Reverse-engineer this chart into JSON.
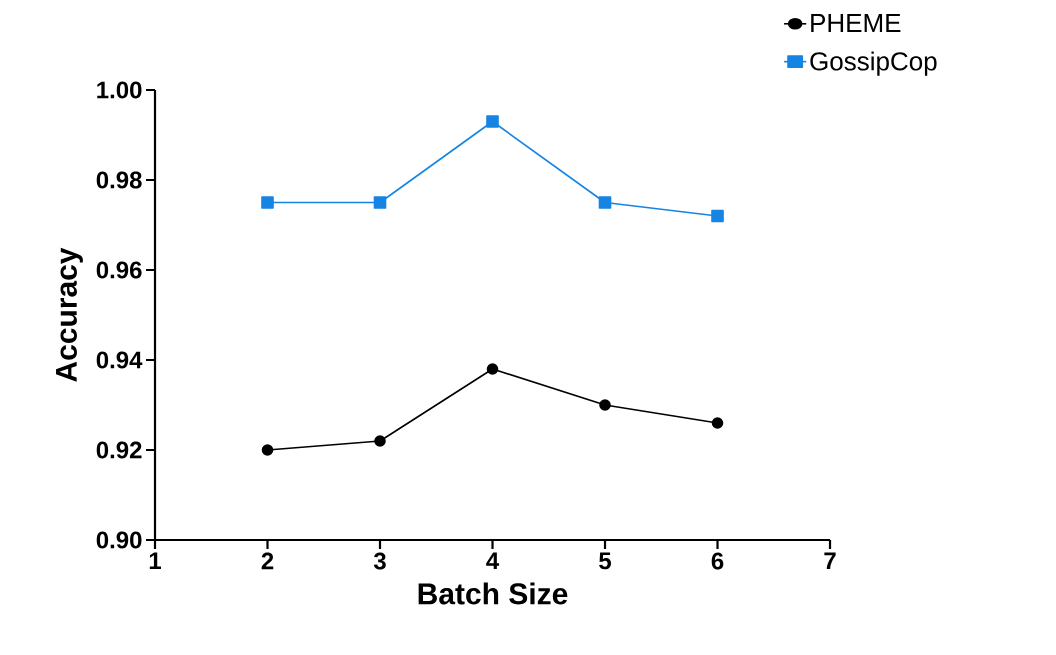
{
  "chart_data": {
    "type": "line",
    "xlabel": "Batch Size",
    "ylabel": "Accuracy",
    "x": [
      2,
      3,
      4,
      5,
      6
    ],
    "series": [
      {
        "name": "PHEME",
        "color": "#000000",
        "marker": "circle",
        "values": [
          0.92,
          0.922,
          0.938,
          0.93,
          0.926
        ]
      },
      {
        "name": "GossipCop",
        "color": "#1684e3",
        "marker": "square",
        "values": [
          0.975,
          0.975,
          0.993,
          0.975,
          0.972
        ]
      }
    ],
    "xlim": [
      1,
      7
    ],
    "xticks": [
      1,
      2,
      3,
      4,
      5,
      6,
      7
    ],
    "ylim": [
      0.9,
      1.0
    ],
    "yticks": [
      {
        "value": 0.9,
        "label": "0.90"
      },
      {
        "value": 0.92,
        "label": "0.92"
      },
      {
        "value": 0.94,
        "label": "0.94"
      },
      {
        "value": 0.96,
        "label": "0.96"
      },
      {
        "value": 0.98,
        "label": "0.98"
      },
      {
        "value": 1.0,
        "label": "1.00"
      }
    ],
    "grid": false,
    "legend": "top right",
    "line_style": "solid"
  }
}
